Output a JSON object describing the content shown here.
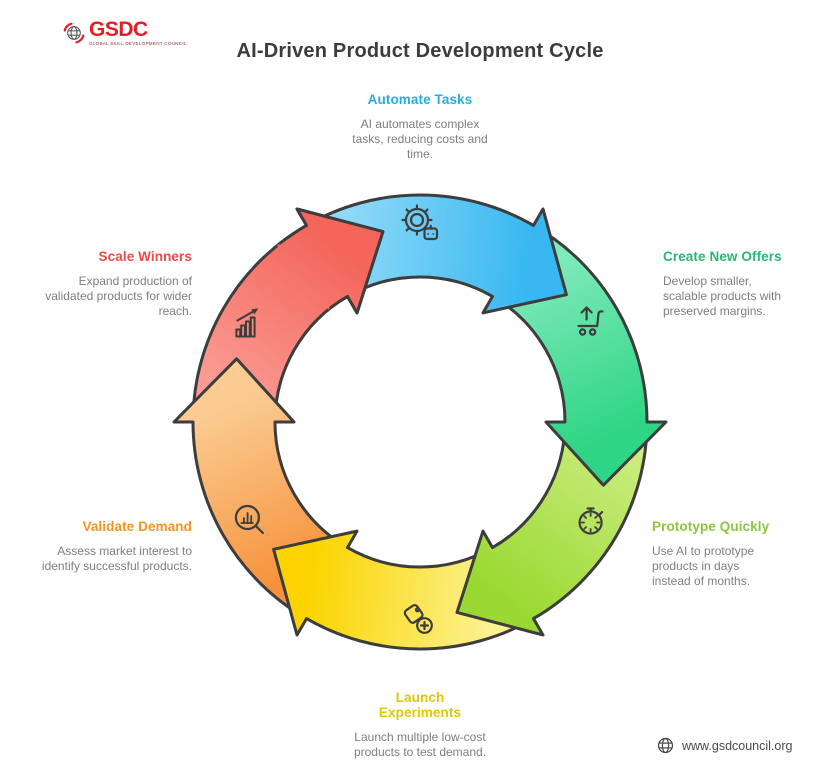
{
  "logo": {
    "name": "GSDC",
    "tagline": "GLOBAL SKILL DEVELOPMENT COUNCIL",
    "icon": "globe-logo-icon",
    "brand_color": "#e41e26"
  },
  "title": "AI-Driven Product Development Cycle",
  "footer": {
    "url": "www.gsdcouncil.org",
    "icon": "globe-icon"
  },
  "cycle": {
    "direction": "clockwise",
    "outline_color": "#3d3d3d",
    "segments": [
      {
        "id": "automate-tasks",
        "label": "Automate Tasks",
        "description": "AI automates complex tasks, reducing costs and time.",
        "label_color": "#29abe2",
        "fill_from": "#8ed9f8",
        "fill_to": "#38b7f1",
        "icon": "gear-robot",
        "angle_center": 0
      },
      {
        "id": "create-new-offers",
        "label": "Create New Offers",
        "description": "Develop smaller, scalable products with preserved margins.",
        "label_color": "#2bb673",
        "fill_from": "#7fe9ba",
        "fill_to": "#2ed584",
        "icon": "cart-up",
        "angle_center": 60
      },
      {
        "id": "prototype-quickly",
        "label": "Prototype Quickly",
        "description": "Use AI to prototype products in days instead of months.",
        "label_color": "#8cc63f",
        "fill_from": "#c9ec7c",
        "fill_to": "#9ad932",
        "icon": "stopwatch",
        "angle_center": 120
      },
      {
        "id": "launch-experiments",
        "label": "Launch Experiments",
        "description": "Launch multiple low-cost products to test demand.",
        "label_color": "#e0c902",
        "fill_from": "#fbf292",
        "fill_to": "#fbd400",
        "icon": "price-tag",
        "angle_center": 180
      },
      {
        "id": "validate-demand",
        "label": "Validate Demand",
        "description": "Assess market interest to identify successful products.",
        "label_color": "#f7941e",
        "fill_from": "#f6923b",
        "fill_to": "#fbcb92",
        "icon": "magnifier-chart",
        "angle_center": 240
      },
      {
        "id": "scale-winners",
        "label": "Scale Winners",
        "description": "Expand production of validated products for wider reach.",
        "label_color": "#ea4b47",
        "fill_from": "#fa9c93",
        "fill_to": "#f4655b",
        "icon": "growth-chart",
        "angle_center": 300
      }
    ]
  }
}
